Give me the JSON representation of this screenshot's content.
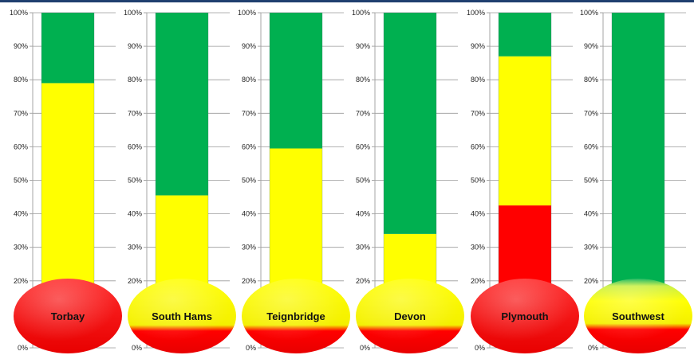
{
  "chart_data": {
    "type": "bar",
    "stacked": true,
    "orientation": "vertical",
    "y_axis": {
      "min": 0,
      "max": 100,
      "step": 10,
      "tick_labels": [
        "0%",
        "10%",
        "20%",
        "30%",
        "40%",
        "50%",
        "60%",
        "70%",
        "80%",
        "90%",
        "100%"
      ]
    },
    "grid": true,
    "colors": {
      "red": "#ff0000",
      "yellow": "#ffff00",
      "green": "#00b050",
      "tube_back": "#d8ebf3"
    },
    "categories": [
      "Torbay",
      "South Hams",
      "Teignbridge",
      "Devon",
      "Plymouth",
      "Southwest"
    ],
    "series": [
      {
        "color": "red",
        "values": [
          0,
          0,
          0,
          0,
          42.5,
          0
        ]
      },
      {
        "color": "yellow",
        "values": [
          79,
          45.5,
          59.5,
          34,
          44.5,
          0
        ]
      },
      {
        "color": "green",
        "values": [
          21,
          54.5,
          40.5,
          66,
          13,
          100
        ]
      }
    ],
    "bulbs": [
      {
        "label": "Torbay",
        "style": "red"
      },
      {
        "label": "South Hams",
        "style": "yellow-red"
      },
      {
        "label": "Teignbridge",
        "style": "yellow-red"
      },
      {
        "label": "Devon",
        "style": "yellow-red"
      },
      {
        "label": "Plymouth",
        "style": "red"
      },
      {
        "label": "Southwest",
        "style": "green-yellow-red"
      }
    ]
  }
}
